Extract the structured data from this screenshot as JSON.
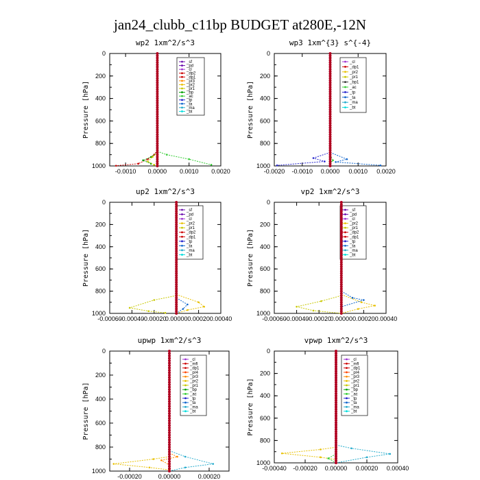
{
  "figure": {
    "title": "jan24_clubb_c11bp  BUDGET at280E,-12N"
  },
  "colors": {
    "_sf": "#6a0dad",
    "_pd": "#6a0dad",
    "_cl": "#9b30d0",
    "_dp2": "#cc0000",
    "_dp1": "#cc0000",
    "_pr3": "#ff8c00",
    "_pr2": "#e8c000",
    "_pr1": "#c8c800",
    "_bp": "#00a000",
    "_ac": "#33cc33",
    "_tp": "#2222cc",
    "_ta": "#1166cc",
    "_ma": "#22aacc",
    "_bt": "#00dddd",
    "_mfl": "#cc0000",
    "_pr4": "#ff4400"
  },
  "chart_data": [
    {
      "type": "line",
      "title": "wp2  1xm^2/s^3",
      "ylabel": "Pressure [hPa]",
      "xlim": [
        -0.0015,
        0.002
      ],
      "ylim": [
        0,
        1000
      ],
      "xticks": [
        -0.001,
        0,
        0.001,
        0.002
      ],
      "xticklabels": [
        "-0.0010",
        "0.0000",
        "0.0010",
        "0.0020"
      ],
      "yticks": [
        0,
        200,
        400,
        600,
        800,
        1000
      ],
      "legend": [
        "_sf",
        "_pd",
        "_cl",
        "_dp2",
        "_dp1",
        "_pr3",
        "_pr2",
        "_pr1",
        "_bp",
        "_ac",
        "_tp",
        "_ta",
        "_ma",
        "_bt"
      ],
      "series": [
        {
          "name": "_dp1",
          "values": [
            [
              0.0,
              860
            ],
            [
              -0.0001,
              900
            ],
            [
              -0.0003,
              940
            ],
            [
              -0.0006,
              980
            ],
            [
              -0.0013,
              998
            ]
          ]
        },
        {
          "name": "_ac",
          "values": [
            [
              0.0,
              870
            ],
            [
              0.0003,
              900
            ],
            [
              0.001,
              940
            ],
            [
              0.0017,
              990
            ]
          ]
        },
        {
          "name": "_bp",
          "values": [
            [
              0.0,
              880
            ],
            [
              -0.0002,
              920
            ],
            [
              -0.00045,
              950
            ],
            [
              -0.0002,
              980
            ]
          ]
        },
        {
          "name": "_pr1",
          "values": [
            [
              0.0,
              880
            ],
            [
              -0.00015,
              920
            ],
            [
              -0.0003,
              960
            ],
            [
              -0.0001,
              990
            ]
          ]
        },
        {
          "name": "_bt",
          "values": [
            [
              0,
              0
            ],
            [
              0,
              1000
            ]
          ]
        }
      ]
    },
    {
      "type": "line",
      "title": "wp3  1xm^{3} s^{-4}",
      "ylabel": "Pressure [hPa]",
      "xlim": [
        -0.002,
        0.002
      ],
      "ylim": [
        0,
        1000
      ],
      "xticks": [
        -0.002,
        -0.001,
        0,
        0.001,
        0.002
      ],
      "xticklabels": [
        "-0.0020",
        "-0.0010",
        "0.0000",
        "0.0010",
        "0.0020"
      ],
      "yticks": [
        0,
        200,
        400,
        600,
        800,
        1000
      ],
      "legend": [
        "_cl",
        "_dp1",
        "_pr2",
        "_pr1",
        "_bp1",
        "_ac",
        "_tp",
        "_ta",
        "_ma",
        "_bt"
      ],
      "series": [
        {
          "name": "_tp",
          "values": [
            [
              0.0,
              880
            ],
            [
              -0.0006,
              930
            ],
            [
              -0.0002,
              960
            ],
            [
              -0.0019,
              995
            ]
          ]
        },
        {
          "name": "_ta",
          "values": [
            [
              0.0,
              880
            ],
            [
              0.0006,
              940
            ],
            [
              0.0002,
              965
            ],
            [
              0.0018,
              995
            ]
          ]
        },
        {
          "name": "_ac",
          "values": [
            [
              0.0,
              900
            ],
            [
              0.0001,
              950
            ],
            [
              0.0,
              980
            ]
          ]
        },
        {
          "name": "_bt",
          "values": [
            [
              0,
              0
            ],
            [
              0,
              1000
            ]
          ]
        }
      ]
    },
    {
      "type": "line",
      "title": "up2  1xm^2/s^3",
      "ylabel": "Pressure [hPa]",
      "xlim": [
        -0.0006,
        0.0004
      ],
      "ylim": [
        0,
        1000
      ],
      "xticks": [
        -0.0006,
        -0.0004,
        -0.0002,
        0,
        0.0002,
        0.0004
      ],
      "xticklabels": [
        "-0.00060",
        "-0.00040",
        "-0.00020",
        "0.00000",
        "0.00020",
        "0.00040"
      ],
      "yticks": [
        0,
        200,
        400,
        600,
        800,
        1000
      ],
      "legend": [
        "_sf",
        "_pd",
        "_cl",
        "_pr2",
        "_pr1",
        "_dp2",
        "_dp1",
        "_tp",
        "_ta",
        "_ma",
        "_bt"
      ],
      "series": [
        {
          "name": "_pr1",
          "values": [
            [
              0.0,
              840
            ],
            [
              -0.0002,
              880
            ],
            [
              -0.00042,
              950
            ],
            [
              -0.00025,
              980
            ],
            [
              -0.0001,
              995
            ]
          ]
        },
        {
          "name": "_pr2",
          "values": [
            [
              0.0,
              830
            ],
            [
              0.0002,
              900
            ],
            [
              0.00025,
              940
            ],
            [
              0.0001,
              970
            ],
            [
              0.0,
              1000
            ]
          ]
        },
        {
          "name": "_ta",
          "values": [
            [
              0.0,
              860
            ],
            [
              0.0001,
              920
            ],
            [
              6e-05,
              960
            ],
            [
              0.0,
              1000
            ]
          ]
        },
        {
          "name": "_bt",
          "values": [
            [
              0,
              0
            ],
            [
              0,
              1000
            ]
          ]
        }
      ]
    },
    {
      "type": "line",
      "title": "vp2  1xm^2/s^3",
      "ylabel": "Pressure [hPa]",
      "xlim": [
        -0.0006,
        0.0004
      ],
      "ylim": [
        0,
        1000
      ],
      "xticks": [
        -0.0006,
        -0.0004,
        -0.0002,
        0,
        0.0002,
        0.0004
      ],
      "xticklabels": [
        "-0.00060",
        "-0.00040",
        "-0.00020",
        "0.00000",
        "0.00020",
        "0.00040"
      ],
      "yticks": [
        0,
        200,
        400,
        600,
        800,
        1000
      ],
      "legend": [
        "_sf",
        "_pd",
        "_cl",
        "_pr2",
        "_pr1",
        "_dp2",
        "_dp1",
        "_tp",
        "_ta",
        "_ma",
        "_bt"
      ],
      "series": [
        {
          "name": "_pr1",
          "values": [
            [
              0.0,
              840
            ],
            [
              -0.00018,
              890
            ],
            [
              -0.0004,
              940
            ],
            [
              -0.00025,
              975
            ],
            [
              0.0,
              1000
            ]
          ]
        },
        {
          "name": "_pr2",
          "values": [
            [
              0.0,
              830
            ],
            [
              0.00018,
              900
            ],
            [
              0.0003,
              930
            ],
            [
              0.00015,
              960
            ],
            [
              0.0,
              1000
            ]
          ]
        },
        {
          "name": "_ta",
          "values": [
            [
              0.0,
              800
            ],
            [
              0.0001,
              860
            ],
            [
              0.0002,
              880
            ],
            [
              0.0,
              940
            ]
          ]
        },
        {
          "name": "_bt",
          "values": [
            [
              0,
              0
            ],
            [
              0,
              1000
            ]
          ]
        }
      ]
    },
    {
      "type": "line",
      "title": "upwp  1xm^2/s^3",
      "ylabel": "Pressure [hPa]",
      "xlim": [
        -0.0003,
        0.0003
      ],
      "ylim": [
        0,
        1000
      ],
      "xticks": [
        -0.0002,
        0,
        0.0002
      ],
      "xticklabels": [
        "-0.00020",
        "0.00000",
        "0.00020"
      ],
      "yticks": [
        0,
        200,
        400,
        600,
        800,
        1000
      ],
      "legend": [
        "_cl",
        "_mfl",
        "_dp1",
        "_pr4",
        "_pr3",
        "_pr2",
        "_pr1",
        "_bp",
        "_ac",
        "_tp",
        "_ta",
        "_ma",
        "_bt"
      ],
      "series": [
        {
          "name": "_pr2",
          "values": [
            [
              0.0,
              880
            ],
            [
              -8e-05,
              900
            ],
            [
              -0.00028,
              940
            ],
            [
              -0.0001,
              970
            ],
            [
              0.0,
              990
            ]
          ]
        },
        {
          "name": "_ma",
          "values": [
            [
              0.0,
              830
            ],
            [
              8e-05,
              880
            ],
            [
              0.00022,
              940
            ],
            [
              8e-05,
              970
            ],
            [
              0.0,
              1000
            ]
          ]
        },
        {
          "name": "_pr3",
          "values": [
            [
              0.0,
              850
            ],
            [
              4e-05,
              880
            ],
            [
              -4e-05,
              910
            ],
            [
              0.0,
              950
            ]
          ]
        },
        {
          "name": "_bt",
          "values": [
            [
              0,
              0
            ],
            [
              0,
              1000
            ]
          ]
        }
      ]
    },
    {
      "type": "line",
      "title": "vpwp  1xm^2/s^3",
      "ylabel": "Pressure [hPa]",
      "xlim": [
        -0.0004,
        0.0004
      ],
      "ylim": [
        0,
        1000
      ],
      "xticks": [
        -0.0004,
        -0.0002,
        0,
        0.0002,
        0.0004
      ],
      "xticklabels": [
        "-0.00040",
        "-0.00020",
        "0.00000",
        "0.00020",
        "0.00040"
      ],
      "yticks": [
        0,
        200,
        400,
        600,
        800,
        1000
      ],
      "legend": [
        "_cl",
        "_mfl",
        "_dp1",
        "_pr4",
        "_pr3",
        "_pr2",
        "_pr1",
        "_bp",
        "_ac",
        "_tp",
        "_ta",
        "_ma",
        "_bt"
      ],
      "series": [
        {
          "name": "_pr2",
          "values": [
            [
              0.0,
              860
            ],
            [
              -0.0001,
              880
            ],
            [
              -0.00035,
              915
            ],
            [
              -0.0001,
              950
            ],
            [
              0.0,
              970
            ]
          ]
        },
        {
          "name": "_ma",
          "values": [
            [
              0.0,
              840
            ],
            [
              0.0001,
              870
            ],
            [
              0.00035,
              920
            ],
            [
              0.0002,
              950
            ],
            [
              0.0,
              1000
            ]
          ]
        },
        {
          "name": "_ac",
          "values": [
            [
              0.0,
              920
            ],
            [
              -5e-05,
              960
            ],
            [
              0.0,
              1000
            ]
          ]
        },
        {
          "name": "_bt",
          "values": [
            [
              0,
              0
            ],
            [
              0,
              1000
            ]
          ]
        }
      ]
    }
  ]
}
